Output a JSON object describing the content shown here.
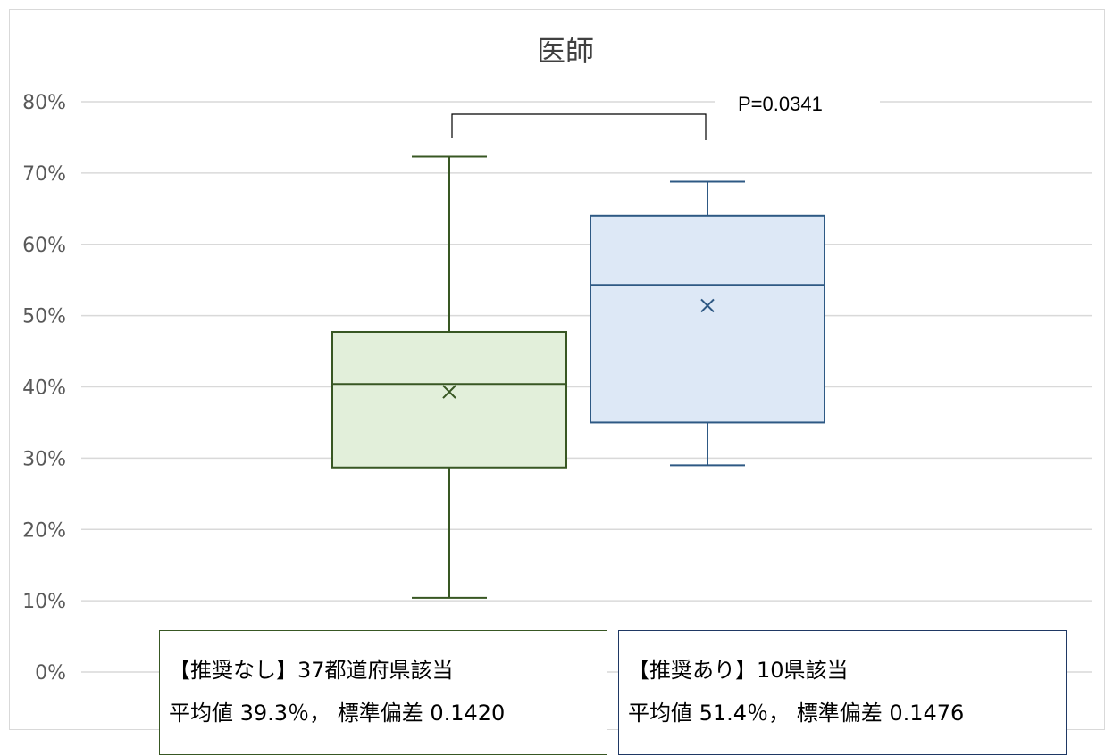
{
  "chart_data": {
    "type": "box",
    "title": "医師",
    "yticks": [
      "0%",
      "10%",
      "20%",
      "30%",
      "40%",
      "50%",
      "60%",
      "70%",
      "80%"
    ],
    "ylim": [
      0,
      80
    ],
    "grid": true,
    "series": [
      {
        "min": 10.4,
        "q1": 28.7,
        "median": 40.4,
        "q3": 47.7,
        "max": 72.3,
        "mean": 39.3,
        "stroke": "#385723",
        "fill": "#e2efda"
      },
      {
        "min": 29.0,
        "q1": 35.0,
        "median": 54.3,
        "q3": 64.0,
        "max": 68.8,
        "mean": 51.4,
        "stroke": "#2e5984",
        "fill": "#dde8f6"
      }
    ],
    "annotation": {
      "text": "P=0.0341"
    }
  },
  "info_boxes": [
    {
      "line1_prefix": "【推奨なし】",
      "line1_count": "37",
      "line1_suffix": "都道府県該当",
      "line2_a": "平均値 ",
      "line2_mean": "39.3",
      "line2_b": "％， 標準偏差 ",
      "line2_sd": "0.1420",
      "border_color": "#385723"
    },
    {
      "line1_prefix": "【推奨あり】",
      "line1_count": "10",
      "line1_suffix": "県該当",
      "line2_a": "平均値 ",
      "line2_mean": "51.4",
      "line2_b": "％， 標準偏差 ",
      "line2_sd": "0.1476",
      "border_color": "#1f3864"
    }
  ]
}
